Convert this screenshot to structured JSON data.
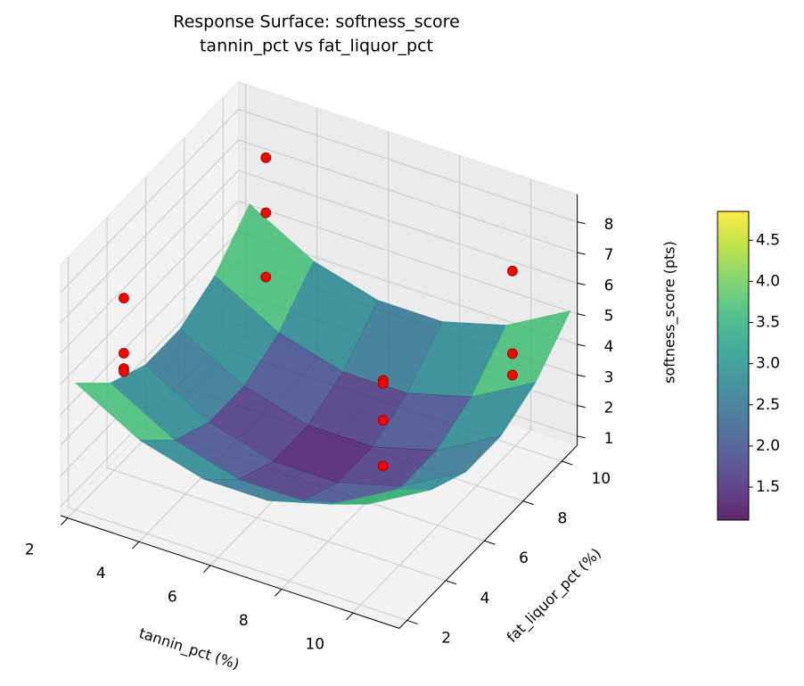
{
  "chart_data": {
    "type": "surface3d",
    "title": "Response Surface: softness_score",
    "subtitle": "tannin_pct vs fat_liquor_pct",
    "x_label": "tannin_pct (%)",
    "y_label": "fat_liquor_pct (%)",
    "z_label": "softness_score (pts)",
    "xlim": [
      1.8,
      11.3
    ],
    "ylim": [
      1.6,
      10.8
    ],
    "zlim": [
      0.7,
      8.9
    ],
    "xticks": [
      2,
      4,
      6,
      8,
      10
    ],
    "yticks": [
      2,
      4,
      6,
      8,
      10
    ],
    "zticks": [
      1,
      2,
      3,
      4,
      5,
      6,
      7,
      8
    ],
    "grid": true,
    "colormap": "viridis",
    "surface": {
      "x": [
        2,
        3.8,
        5.6,
        7.4,
        9.2,
        11
      ],
      "y": [
        2,
        3.8,
        5.6,
        7.4,
        9.2,
        11
      ],
      "z": [
        [
          4.85,
          3.68,
          3.1,
          3.1,
          3.68,
          4.85
        ],
        [
          3.68,
          2.51,
          1.93,
          1.93,
          2.51,
          3.68
        ],
        [
          3.1,
          1.93,
          1.35,
          1.35,
          1.93,
          3.1
        ],
        [
          3.1,
          1.93,
          1.35,
          1.35,
          1.93,
          3.1
        ],
        [
          3.68,
          2.51,
          1.93,
          1.93,
          2.51,
          3.68
        ],
        [
          4.85,
          3.68,
          3.1,
          3.1,
          3.68,
          4.85
        ]
      ]
    },
    "points": {
      "color": "#ff0000",
      "x": [
        3,
        3,
        3,
        2,
        2,
        2,
        2,
        9,
        9,
        9,
        9,
        11,
        11,
        11
      ],
      "y": [
        10,
        10,
        10,
        4.5,
        4.5,
        4.5,
        4.5,
        5,
        5,
        5,
        5,
        8,
        8,
        8
      ],
      "z": [
        7.4,
        5.6,
        3.5,
        6.0,
        4.2,
        3.7,
        3.6,
        5.7,
        5.6,
        4.4,
        2.9,
        8.1,
        5.4,
        4.7
      ]
    },
    "colorbar": {
      "lim": [
        1.1,
        4.85
      ],
      "ticks": [
        1.5,
        {
          "value": 2.0,
          "label": "2.0"
        },
        2.5,
        {
          "value": 3.0,
          "label": "3.0"
        },
        3.5,
        {
          "value": 4.0,
          "label": "4.0"
        },
        4.5
      ]
    }
  }
}
